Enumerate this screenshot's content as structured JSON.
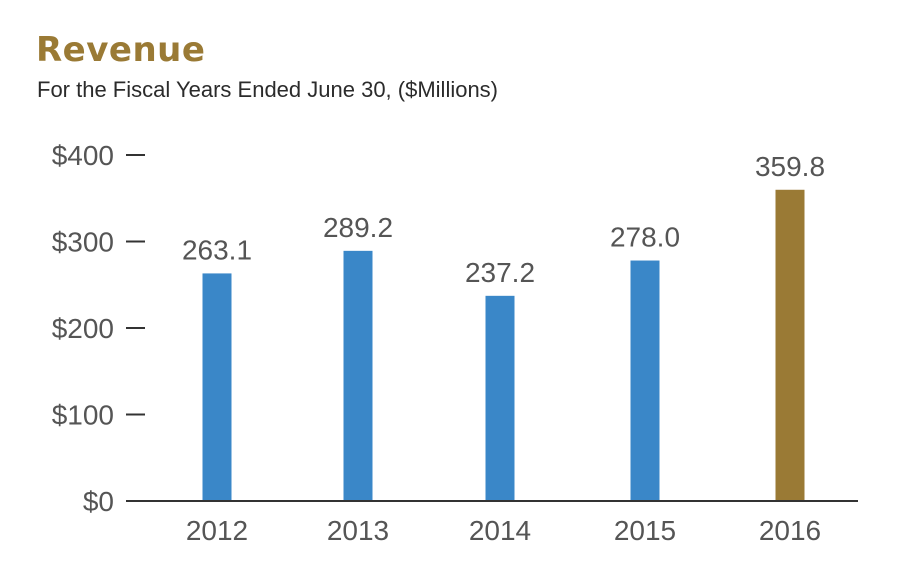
{
  "chart_data": {
    "type": "bar",
    "title": "Revenue",
    "subtitle": "For the Fiscal Years Ended June 30, ($Millions)",
    "xlabel": "",
    "ylabel": "",
    "categories": [
      "2012",
      "2013",
      "2014",
      "2015",
      "2016"
    ],
    "values": [
      263.1,
      289.2,
      237.2,
      278.0,
      359.8
    ],
    "value_labels": [
      "263.1",
      "289.2",
      "237.2",
      "278.0",
      "359.8"
    ],
    "ylim": [
      0,
      400
    ],
    "yticks": [
      0,
      100,
      200,
      300,
      400
    ],
    "ytick_labels": [
      "$0",
      "$100",
      "$200",
      "$300",
      "$400"
    ],
    "grid": false,
    "legend": "none",
    "colors": {
      "default_bar": "#3a87c8",
      "highlight_bar": "#9a7a35",
      "title": "#9a7a35",
      "axis": "#333333",
      "text": "#555555"
    },
    "highlight_index": 4
  }
}
